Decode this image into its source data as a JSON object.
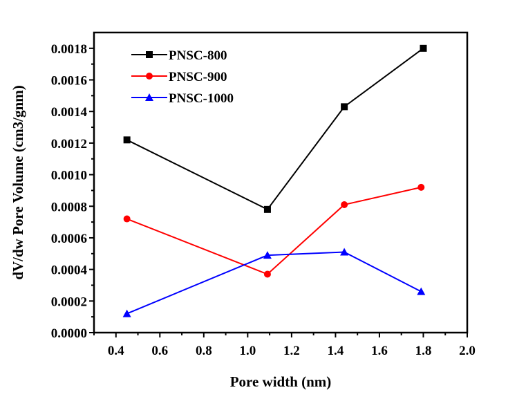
{
  "chart_data": {
    "type": "line",
    "title": "",
    "xlabel": "Pore width (nm)",
    "ylabel": "dV/dw Pore Volume (cm3/gnm)",
    "xlim": [
      0.3,
      2.0
    ],
    "ylim": [
      0.0,
      0.0019
    ],
    "x_ticks": [
      "0.4",
      "0.6",
      "0.8",
      "1.0",
      "1.2",
      "1.4",
      "1.6",
      "1.8",
      "2.0"
    ],
    "x_tick_values": [
      0.4,
      0.6,
      0.8,
      1.0,
      1.2,
      1.4,
      1.6,
      1.8,
      2.0
    ],
    "y_ticks": [
      "0.0000",
      "0.0002",
      "0.0004",
      "0.0006",
      "0.0008",
      "0.0010",
      "0.0012",
      "0.0014",
      "0.0016",
      "0.0018"
    ],
    "y_tick_values": [
      0.0,
      0.0002,
      0.0004,
      0.0006,
      0.0008,
      0.001,
      0.0012,
      0.0014,
      0.0016,
      0.0018
    ],
    "grid": false,
    "legend_position": "top-left",
    "series": [
      {
        "name": "PNSC-800",
        "color": "#000000",
        "marker": "square",
        "x": [
          0.45,
          1.09,
          1.44,
          1.8
        ],
        "values": [
          0.00122,
          0.00078,
          0.00143,
          0.0018
        ]
      },
      {
        "name": "PNSC-900",
        "color": "#ff0000",
        "marker": "circle",
        "x": [
          0.45,
          1.09,
          1.44,
          1.79
        ],
        "values": [
          0.00072,
          0.00037,
          0.00081,
          0.00092
        ]
      },
      {
        "name": "PNSC-1000",
        "color": "#0000ff",
        "marker": "triangle",
        "x": [
          0.45,
          1.09,
          1.44,
          1.79
        ],
        "values": [
          0.00012,
          0.00049,
          0.00051,
          0.00026
        ]
      }
    ]
  }
}
